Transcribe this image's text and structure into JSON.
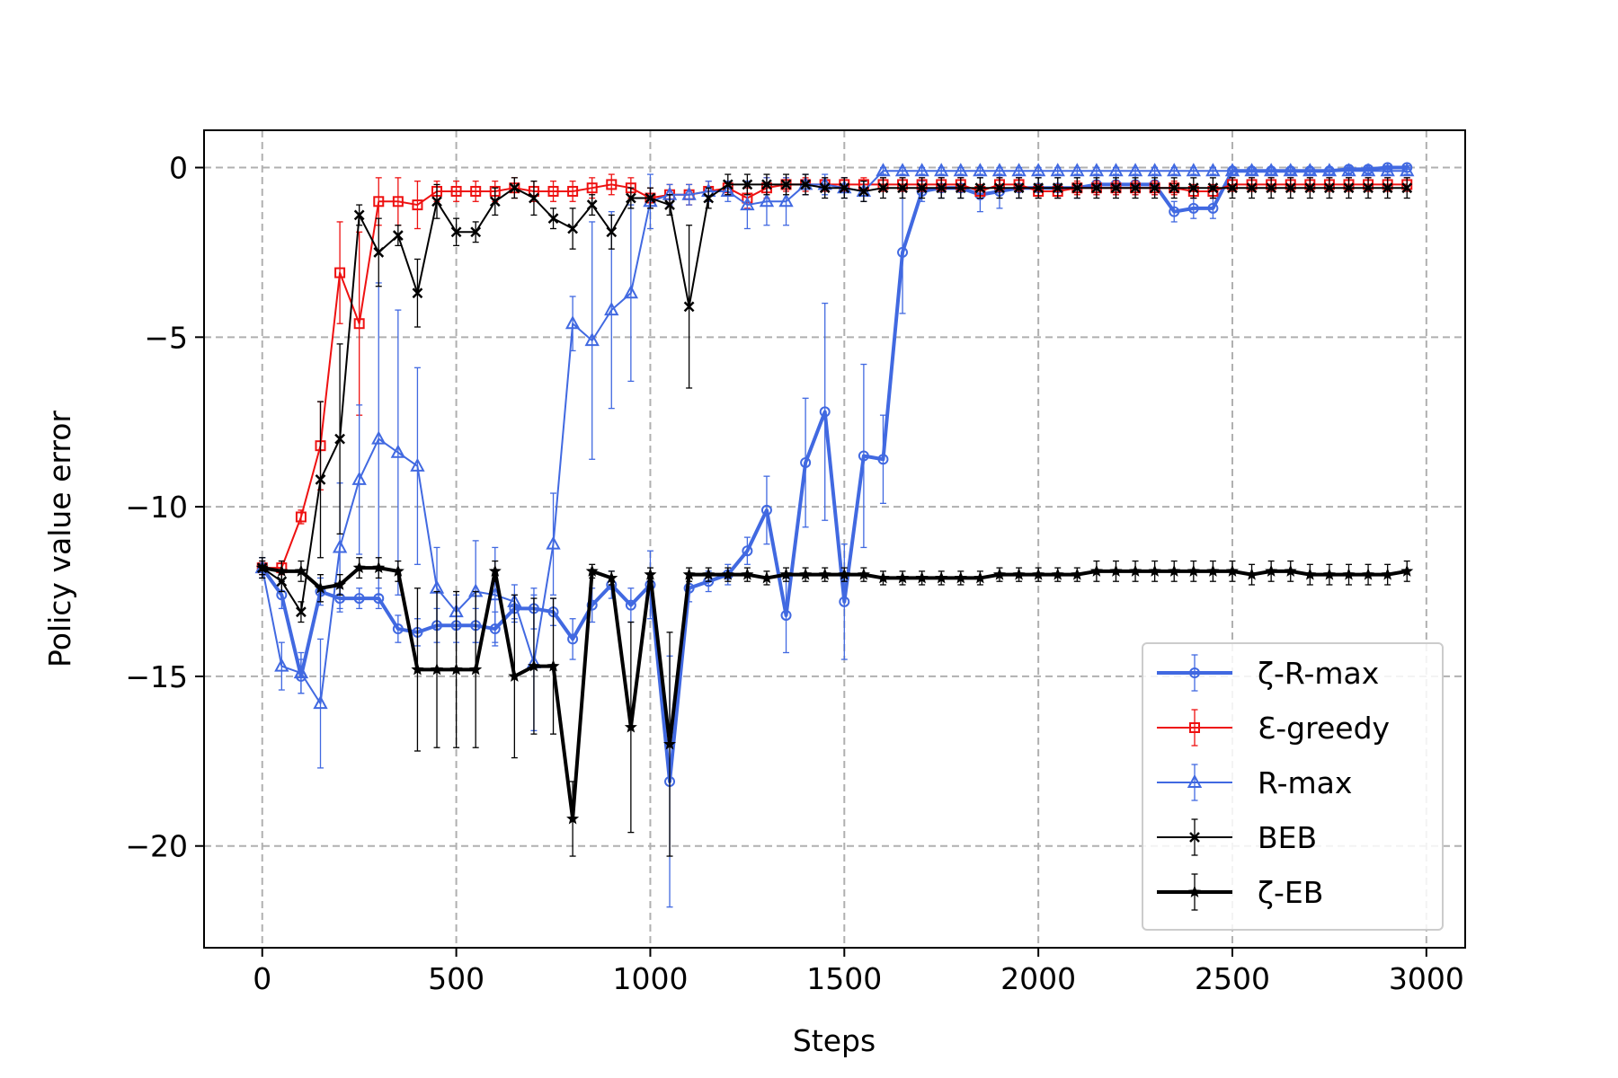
{
  "chart_data": {
    "type": "line",
    "xlabel": "Steps",
    "ylabel": "Policy value error",
    "xlim": [
      -150,
      3100
    ],
    "ylim": [
      -23,
      1.1
    ],
    "xticks": [
      0,
      500,
      1000,
      1500,
      2000,
      2500,
      3000
    ],
    "yticks": [
      0,
      -5,
      -10,
      -15,
      -20
    ],
    "xtick_labels": [
      "0",
      "500",
      "1000",
      "1500",
      "2000",
      "2500",
      "3000"
    ],
    "ytick_labels": [
      "0",
      "−5",
      "−10",
      "−15",
      "−20"
    ],
    "grid": true,
    "legend_position": "lower-right",
    "series": [
      {
        "name": "ζ-R-max",
        "color": "#4169e1",
        "marker": "circle",
        "linewidth": "thick",
        "x": [
          0,
          50,
          100,
          150,
          200,
          250,
          300,
          350,
          400,
          450,
          500,
          550,
          600,
          650,
          700,
          750,
          800,
          850,
          900,
          950,
          1000,
          1050,
          1100,
          1150,
          1200,
          1250,
          1300,
          1350,
          1400,
          1450,
          1500,
          1550,
          1600,
          1650,
          1700,
          1750,
          1800,
          1850,
          1900,
          1950,
          2000,
          2050,
          2100,
          2150,
          2200,
          2250,
          2300,
          2350,
          2400,
          2450,
          2500,
          2550,
          2600,
          2650,
          2700,
          2750,
          2800,
          2850,
          2900,
          2950
        ],
        "y": [
          -11.8,
          -12.6,
          -15.0,
          -12.5,
          -12.7,
          -12.7,
          -12.7,
          -13.6,
          -13.7,
          -13.5,
          -13.5,
          -13.5,
          -13.6,
          -13.0,
          -13.0,
          -13.1,
          -13.9,
          -12.9,
          -12.3,
          -12.9,
          -12.3,
          -18.1,
          -12.4,
          -12.2,
          -12.0,
          -11.3,
          -10.1,
          -13.2,
          -8.7,
          -7.2,
          -12.8,
          -8.5,
          -8.6,
          -2.5,
          -0.7,
          -0.6,
          -0.6,
          -0.8,
          -0.7,
          -0.6,
          -0.6,
          -0.6,
          -0.6,
          -0.5,
          -0.5,
          -0.5,
          -0.5,
          -1.3,
          -1.2,
          -1.2,
          -0.1,
          -0.1,
          -0.1,
          -0.1,
          -0.1,
          -0.1,
          -0.05,
          -0.05,
          0.0,
          0.0
        ],
        "err": [
          0.3,
          0.4,
          0.5,
          0.4,
          0.3,
          0.3,
          0.3,
          0.4,
          0.4,
          0.5,
          0.5,
          0.5,
          0.5,
          0.4,
          0.6,
          0.4,
          0.6,
          0.5,
          0.4,
          0.5,
          1.0,
          3.7,
          0.4,
          0.3,
          0.3,
          0.4,
          1.0,
          1.1,
          1.9,
          3.2,
          1.7,
          2.7,
          1.3,
          1.8,
          0.3,
          0.3,
          0.3,
          0.5,
          0.5,
          0.3,
          0.3,
          0.3,
          0.3,
          0.3,
          0.3,
          0.3,
          0.3,
          0.3,
          0.3,
          0.3,
          0.1,
          0.1,
          0.1,
          0.1,
          0.1,
          0.1,
          0.05,
          0.05,
          0.05,
          0.05
        ]
      },
      {
        "name": "Ɛ-greedy",
        "color": "#ee1111",
        "marker": "square",
        "linewidth": "thin",
        "x": [
          0,
          50,
          100,
          150,
          200,
          250,
          300,
          350,
          400,
          450,
          500,
          550,
          600,
          650,
          700,
          750,
          800,
          850,
          900,
          950,
          1000,
          1050,
          1100,
          1150,
          1200,
          1250,
          1300,
          1350,
          1400,
          1450,
          1500,
          1550,
          1600,
          1650,
          1700,
          1750,
          1800,
          1850,
          1900,
          1950,
          2000,
          2050,
          2100,
          2150,
          2200,
          2250,
          2300,
          2350,
          2400,
          2450,
          2500,
          2550,
          2600,
          2650,
          2700,
          2750,
          2800,
          2850,
          2900,
          2950
        ],
        "y": [
          -11.8,
          -11.8,
          -10.3,
          -8.2,
          -3.1,
          -4.6,
          -1.0,
          -1.0,
          -1.1,
          -0.7,
          -0.7,
          -0.7,
          -0.7,
          -0.6,
          -0.7,
          -0.7,
          -0.7,
          -0.6,
          -0.5,
          -0.6,
          -0.9,
          -0.8,
          -0.8,
          -0.7,
          -0.6,
          -0.9,
          -0.6,
          -0.5,
          -0.5,
          -0.5,
          -0.5,
          -0.5,
          -0.5,
          -0.5,
          -0.5,
          -0.5,
          -0.5,
          -0.7,
          -0.5,
          -0.5,
          -0.7,
          -0.7,
          -0.6,
          -0.6,
          -0.6,
          -0.6,
          -0.6,
          -0.6,
          -0.7,
          -0.7,
          -0.5,
          -0.5,
          -0.5,
          -0.5,
          -0.5,
          -0.5,
          -0.5,
          -0.5,
          -0.5,
          -0.5
        ],
        "err": [
          0.2,
          0.2,
          0.2,
          1.3,
          1.5,
          2.7,
          0.7,
          0.7,
          0.7,
          0.3,
          0.3,
          0.3,
          0.3,
          0.3,
          0.3,
          0.3,
          0.3,
          0.3,
          0.3,
          0.3,
          0.3,
          0.3,
          0.3,
          0.3,
          0.2,
          0.3,
          0.3,
          0.2,
          0.2,
          0.2,
          0.2,
          0.2,
          0.2,
          0.2,
          0.2,
          0.2,
          0.2,
          0.2,
          0.2,
          0.2,
          0.2,
          0.2,
          0.2,
          0.2,
          0.2,
          0.2,
          0.2,
          0.2,
          0.2,
          0.2,
          0.2,
          0.2,
          0.2,
          0.2,
          0.2,
          0.2,
          0.2,
          0.2,
          0.2,
          0.2
        ]
      },
      {
        "name": "R-max",
        "color": "#4169e1",
        "marker": "triangle",
        "linewidth": "thin",
        "x": [
          0,
          50,
          100,
          150,
          200,
          250,
          300,
          350,
          400,
          450,
          500,
          550,
          600,
          650,
          700,
          750,
          800,
          850,
          900,
          950,
          1000,
          1050,
          1100,
          1150,
          1200,
          1250,
          1300,
          1350,
          1400,
          1450,
          1500,
          1550,
          1600,
          1650,
          1700,
          1750,
          1800,
          1850,
          1900,
          1950,
          2000,
          2050,
          2100,
          2150,
          2200,
          2250,
          2300,
          2350,
          2400,
          2450,
          2500,
          2550,
          2600,
          2650,
          2700,
          2750,
          2800,
          2850,
          2900,
          2950
        ],
        "y": [
          -11.8,
          -14.7,
          -14.9,
          -15.8,
          -11.2,
          -9.2,
          -8.0,
          -8.4,
          -8.8,
          -12.4,
          -13.1,
          -12.5,
          -12.6,
          -12.8,
          -14.6,
          -11.1,
          -4.6,
          -5.1,
          -4.2,
          -3.7,
          -1.0,
          -0.8,
          -0.8,
          -0.7,
          -0.7,
          -1.1,
          -1.0,
          -1.0,
          -0.5,
          -0.5,
          -0.6,
          -0.7,
          -0.1,
          -0.1,
          -0.1,
          -0.1,
          -0.1,
          -0.1,
          -0.1,
          -0.1,
          -0.1,
          -0.1,
          -0.1,
          -0.1,
          -0.1,
          -0.1,
          -0.1,
          -0.1,
          -0.1,
          -0.1,
          -0.1,
          -0.1,
          -0.1,
          -0.1,
          -0.1,
          -0.1,
          -0.1,
          -0.1,
          -0.1,
          -0.1
        ],
        "err": [
          0.3,
          0.7,
          0.6,
          1.9,
          1.9,
          2.2,
          4.6,
          4.2,
          2.9,
          1.2,
          0.5,
          1.5,
          1.4,
          0.5,
          2.0,
          1.5,
          0.8,
          3.5,
          2.9,
          2.6,
          0.8,
          0.3,
          0.3,
          0.3,
          0.3,
          0.7,
          0.7,
          0.7,
          0.3,
          0.3,
          0.3,
          0.3,
          0.1,
          0.1,
          0.1,
          0.1,
          0.1,
          0.1,
          0.1,
          0.1,
          0.1,
          0.1,
          0.1,
          0.1,
          0.1,
          0.1,
          0.1,
          0.1,
          0.1,
          0.1,
          0.1,
          0.1,
          0.1,
          0.1,
          0.1,
          0.1,
          0.1,
          0.1,
          0.1,
          0.1
        ]
      },
      {
        "name": "BEB",
        "color": "#000000",
        "marker": "x",
        "linewidth": "thin",
        "x": [
          0,
          50,
          100,
          150,
          200,
          250,
          300,
          350,
          400,
          450,
          500,
          550,
          600,
          650,
          700,
          750,
          800,
          850,
          900,
          950,
          1000,
          1050,
          1100,
          1150,
          1200,
          1250,
          1300,
          1350,
          1400,
          1450,
          1500,
          1550,
          1600,
          1650,
          1700,
          1750,
          1800,
          1850,
          1900,
          1950,
          2000,
          2050,
          2100,
          2150,
          2200,
          2250,
          2300,
          2350,
          2400,
          2450,
          2500,
          2550,
          2600,
          2650,
          2700,
          2750,
          2800,
          2850,
          2900,
          2950
        ],
        "y": [
          -11.8,
          -12.2,
          -13.1,
          -9.2,
          -8.0,
          -1.4,
          -2.5,
          -2.0,
          -3.7,
          -1.0,
          -1.9,
          -1.9,
          -1.0,
          -0.6,
          -0.9,
          -1.5,
          -1.8,
          -1.1,
          -1.9,
          -0.9,
          -0.9,
          -1.1,
          -4.1,
          -0.9,
          -0.5,
          -0.5,
          -0.5,
          -0.5,
          -0.5,
          -0.6,
          -0.6,
          -0.7,
          -0.6,
          -0.6,
          -0.6,
          -0.6,
          -0.6,
          -0.6,
          -0.6,
          -0.6,
          -0.6,
          -0.6,
          -0.6,
          -0.6,
          -0.6,
          -0.6,
          -0.6,
          -0.6,
          -0.6,
          -0.6,
          -0.6,
          -0.6,
          -0.6,
          -0.6,
          -0.6,
          -0.6,
          -0.6,
          -0.6,
          -0.6,
          -0.6
        ],
        "err": [
          0.2,
          0.3,
          0.3,
          2.3,
          2.8,
          0.3,
          1.0,
          0.3,
          1.0,
          0.5,
          0.4,
          0.3,
          0.4,
          0.3,
          0.5,
          0.3,
          0.6,
          0.3,
          0.5,
          0.3,
          0.3,
          0.3,
          2.4,
          0.3,
          0.3,
          0.3,
          0.3,
          0.3,
          0.3,
          0.3,
          0.3,
          0.3,
          0.3,
          0.3,
          0.3,
          0.3,
          0.3,
          0.3,
          0.3,
          0.3,
          0.3,
          0.3,
          0.3,
          0.3,
          0.3,
          0.3,
          0.3,
          0.3,
          0.3,
          0.3,
          0.3,
          0.3,
          0.3,
          0.3,
          0.3,
          0.3,
          0.3,
          0.3,
          0.3,
          0.3
        ]
      },
      {
        "name": "ζ-EB",
        "color": "#000000",
        "marker": "star",
        "linewidth": "thick",
        "x": [
          0,
          50,
          100,
          150,
          200,
          250,
          300,
          350,
          400,
          450,
          500,
          550,
          600,
          650,
          700,
          750,
          800,
          850,
          900,
          950,
          1000,
          1050,
          1100,
          1150,
          1200,
          1250,
          1300,
          1350,
          1400,
          1450,
          1500,
          1550,
          1600,
          1650,
          1700,
          1750,
          1800,
          1850,
          1900,
          1950,
          2000,
          2050,
          2100,
          2150,
          2200,
          2250,
          2300,
          2350,
          2400,
          2450,
          2500,
          2550,
          2600,
          2650,
          2700,
          2750,
          2800,
          2850,
          2900,
          2950
        ],
        "y": [
          -11.8,
          -11.9,
          -11.9,
          -12.4,
          -12.3,
          -11.8,
          -11.8,
          -11.9,
          -14.8,
          -14.8,
          -14.8,
          -14.8,
          -11.9,
          -15.0,
          -14.7,
          -14.7,
          -19.2,
          -11.9,
          -12.1,
          -16.5,
          -12.0,
          -17.0,
          -12.0,
          -12.0,
          -12.0,
          -12.0,
          -12.1,
          -12.0,
          -12.0,
          -12.0,
          -12.0,
          -12.0,
          -12.1,
          -12.1,
          -12.1,
          -12.1,
          -12.1,
          -12.1,
          -12.0,
          -12.0,
          -12.0,
          -12.0,
          -12.0,
          -11.9,
          -11.9,
          -11.9,
          -11.9,
          -11.9,
          -11.9,
          -11.9,
          -11.9,
          -12.0,
          -11.9,
          -11.9,
          -12.0,
          -12.0,
          -12.0,
          -12.0,
          -12.0,
          -11.9
        ],
        "err": [
          0.3,
          0.3,
          0.3,
          0.4,
          0.3,
          0.3,
          0.3,
          0.3,
          2.4,
          2.3,
          2.3,
          2.3,
          0.3,
          2.4,
          2.0,
          2.0,
          1.1,
          0.2,
          0.2,
          3.1,
          0.2,
          3.3,
          0.2,
          0.2,
          0.2,
          0.2,
          0.2,
          0.2,
          0.2,
          0.2,
          0.2,
          0.2,
          0.2,
          0.2,
          0.2,
          0.2,
          0.2,
          0.2,
          0.2,
          0.2,
          0.2,
          0.2,
          0.2,
          0.3,
          0.3,
          0.3,
          0.3,
          0.3,
          0.3,
          0.3,
          0.3,
          0.3,
          0.3,
          0.3,
          0.3,
          0.3,
          0.3,
          0.3,
          0.3,
          0.3
        ]
      }
    ]
  }
}
